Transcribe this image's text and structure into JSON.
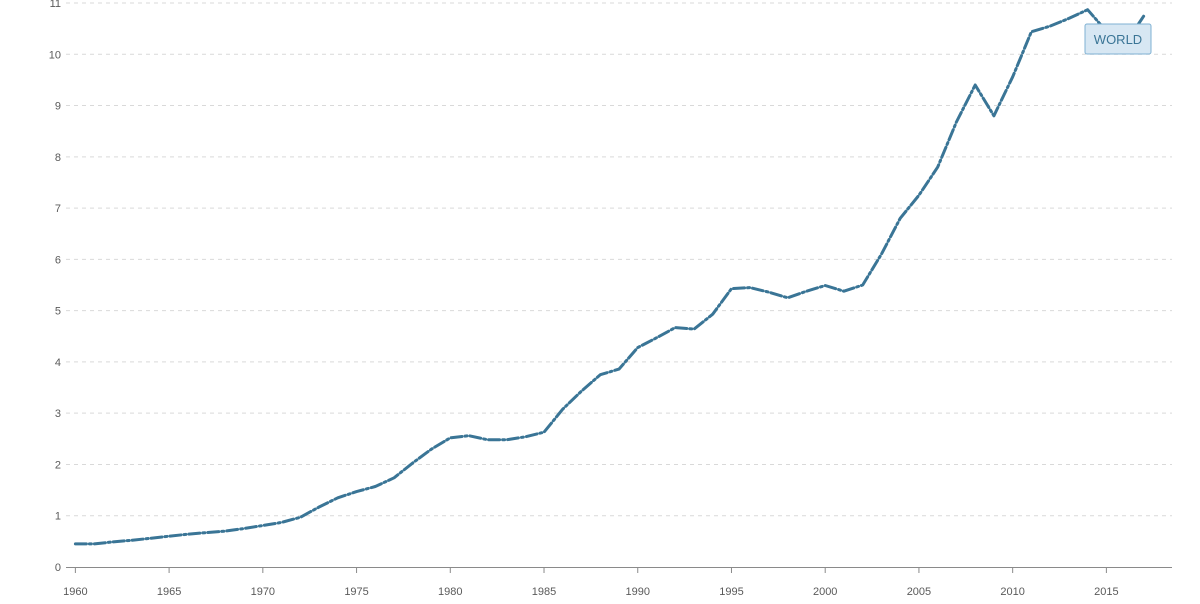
{
  "chart_data": {
    "type": "line",
    "title": "",
    "xlabel": "",
    "ylabel": "",
    "xlim": [
      1959.5,
      2018.5
    ],
    "ylim": [
      0,
      11
    ],
    "grid": true,
    "x_ticks": [
      1960,
      1965,
      1970,
      1975,
      1980,
      1985,
      1990,
      1995,
      2000,
      2005,
      2010,
      2015
    ],
    "y_ticks": [
      0,
      1,
      2,
      3,
      4,
      5,
      6,
      7,
      8,
      9,
      10,
      11
    ],
    "series": [
      {
        "name": "WORLD",
        "color": "#3a7596",
        "x": [
          1960,
          1961,
          1962,
          1963,
          1964,
          1965,
          1966,
          1967,
          1968,
          1969,
          1970,
          1971,
          1972,
          1973,
          1974,
          1975,
          1976,
          1977,
          1978,
          1979,
          1980,
          1981,
          1982,
          1983,
          1984,
          1985,
          1986,
          1987,
          1988,
          1989,
          1990,
          1991,
          1992,
          1993,
          1994,
          1995,
          1996,
          1997,
          1998,
          1999,
          2000,
          2001,
          2002,
          2003,
          2004,
          2005,
          2006,
          2007,
          2008,
          2009,
          2010,
          2011,
          2012,
          2013,
          2014,
          2015,
          2016,
          2017
        ],
        "values": [
          0.45,
          0.45,
          0.49,
          0.52,
          0.56,
          0.6,
          0.64,
          0.67,
          0.7,
          0.75,
          0.81,
          0.87,
          0.97,
          1.17,
          1.35,
          1.47,
          1.57,
          1.74,
          2.03,
          2.3,
          2.52,
          2.56,
          2.48,
          2.48,
          2.54,
          2.63,
          3.08,
          3.43,
          3.75,
          3.86,
          4.28,
          4.47,
          4.67,
          4.64,
          4.93,
          5.43,
          5.45,
          5.36,
          5.25,
          5.38,
          5.49,
          5.38,
          5.5,
          6.1,
          6.8,
          7.25,
          7.8,
          8.68,
          9.4,
          8.8,
          9.56,
          10.44,
          10.55,
          10.7,
          10.87,
          10.45,
          10.2,
          10.75
        ]
      }
    ],
    "legend": {
      "label": "WORLD",
      "position": "top-right",
      "text_color": "#3a7596"
    }
  }
}
